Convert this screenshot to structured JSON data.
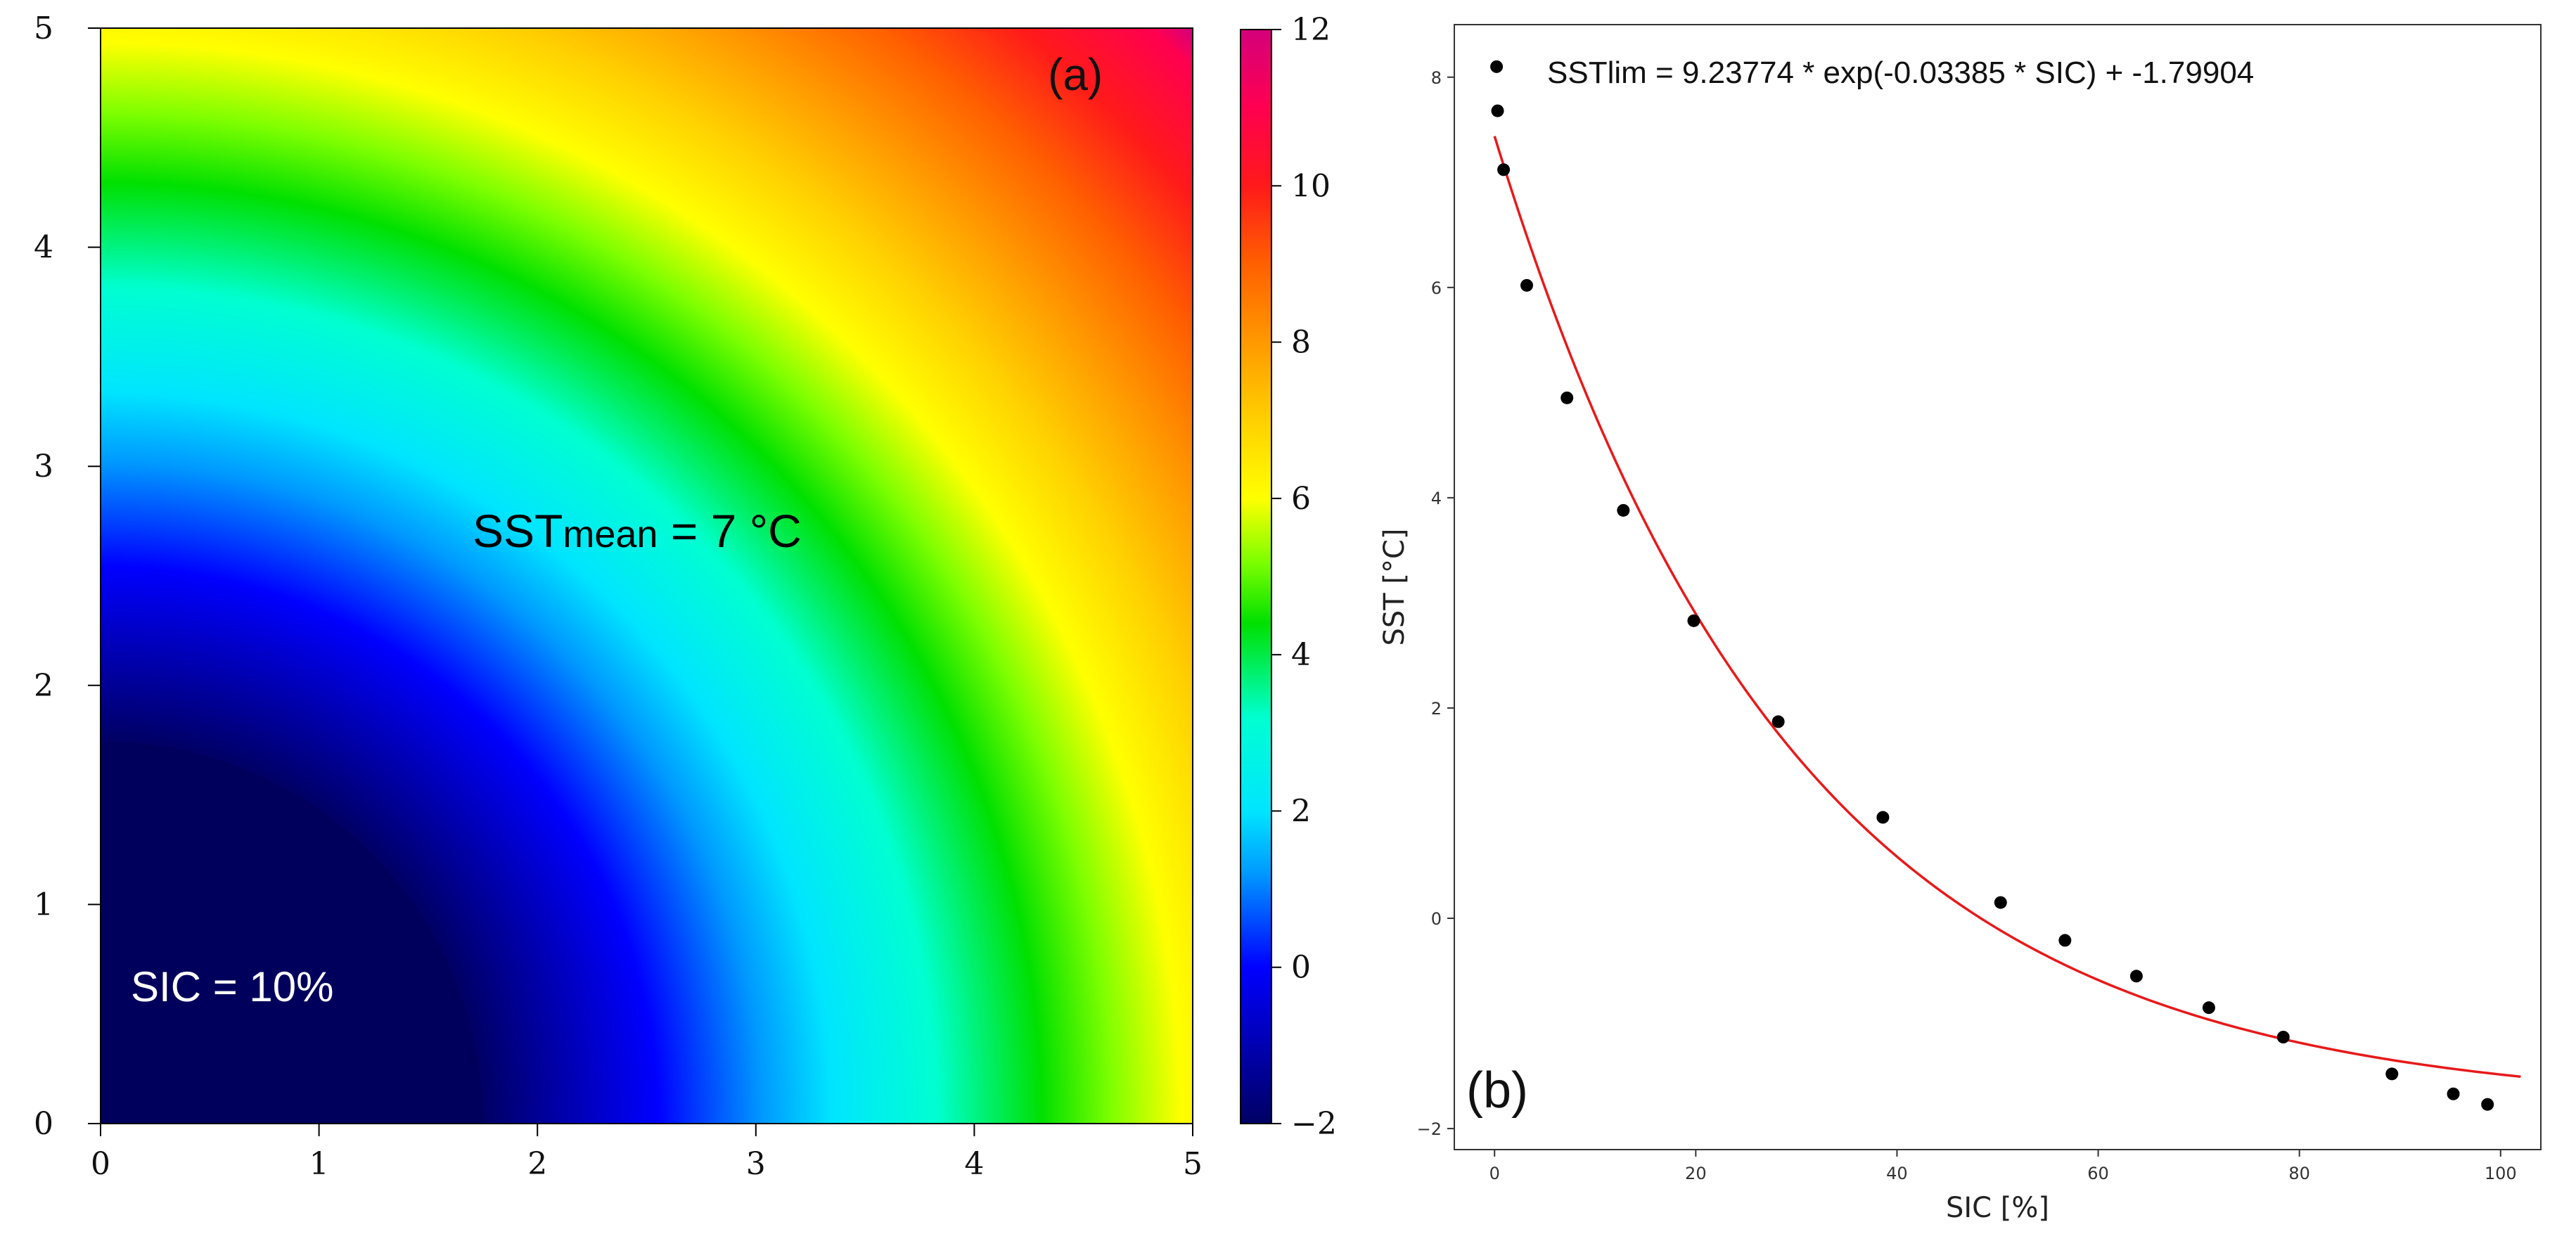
{
  "chart_data": [
    {
      "type": "heatmap",
      "panel": "(a)",
      "description_field": "radial SST field increasing from origin",
      "annotations": {
        "sst_mean_prefix": "SST",
        "sst_mean_sub": "mean",
        "sst_mean_suffix": " = 7 °C",
        "sic": "SIC = 10%"
      },
      "field": {
        "center": [
          0,
          0
        ],
        "sic_radius": 1.75,
        "value_at_sic_radius": -2,
        "max_value_at_corner": 12,
        "gradient_per_unit_distance": 2.5
      },
      "xlim": [
        0,
        5
      ],
      "ylim": [
        0,
        5
      ],
      "xticks": [
        "0",
        "1",
        "2",
        "3",
        "4",
        "5"
      ],
      "yticks": [
        "0",
        "1",
        "2",
        "3",
        "4",
        "5"
      ],
      "colorbar": {
        "range": [
          -2,
          12
        ],
        "ticks": [
          "−2",
          "0",
          "2",
          "4",
          "6",
          "8",
          "10",
          "12"
        ]
      }
    },
    {
      "type": "scatter",
      "panel": "(b)",
      "title_equation": "SSTlim = 9.23774 * exp(-0.03385 * SIC) + -1.79904",
      "xlabel": "SIC [%]",
      "ylabel": "SST  [°C]",
      "xlim": [
        -4,
        104
      ],
      "ylim": [
        -2.2,
        8.5
      ],
      "xticks": [
        "0",
        "20",
        "40",
        "60",
        "80",
        "100"
      ],
      "yticks": [
        "−2",
        "0",
        "2",
        "4",
        "6",
        "8"
      ],
      "series": [
        {
          "name": "observations",
          "x": [
            0.2,
            0.3,
            0.9,
            3.2,
            7.2,
            12.8,
            19.8,
            28.2,
            38.6,
            50.3,
            56.7,
            63.8,
            71.0,
            78.4,
            89.2,
            95.3,
            98.7
          ],
          "y": [
            8.1,
            7.68,
            7.12,
            6.02,
            4.95,
            3.88,
            2.83,
            1.87,
            0.96,
            0.15,
            -0.21,
            -0.55,
            -0.85,
            -1.13,
            -1.48,
            -1.67,
            -1.77
          ]
        },
        {
          "name": "fit",
          "kind": "line",
          "a": 9.23774,
          "b": -0.03385,
          "c": -1.79904,
          "x_range": [
            0,
            102
          ]
        }
      ]
    }
  ]
}
